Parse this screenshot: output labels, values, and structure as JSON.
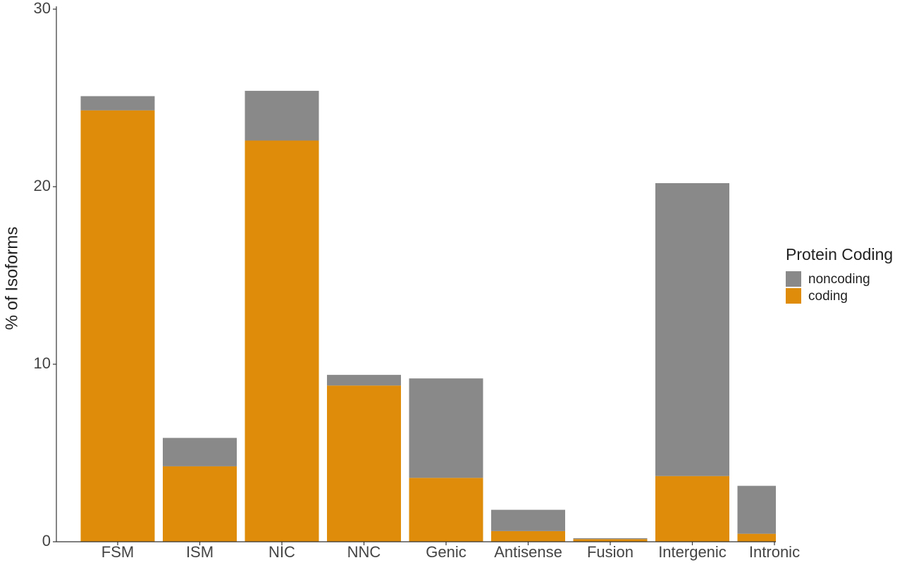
{
  "chart_data": {
    "type": "stacked_bar",
    "y_label": "% of Isoforms",
    "categories": [
      "FSM",
      "ISM",
      "NIC",
      "NNC",
      "Genic",
      "Antisense",
      "Fusion",
      "Intergenic",
      "Intronic"
    ],
    "series": [
      {
        "name": "noncoding",
        "color": "#898989",
        "values": [
          0.8,
          1.6,
          2.8,
          0.6,
          5.6,
          1.2,
          0.05,
          16.5,
          2.7
        ]
      },
      {
        "name": "coding",
        "color": "#de8c0a",
        "values": [
          24.3,
          4.25,
          22.6,
          8.8,
          3.6,
          0.6,
          0.15,
          3.7,
          0.45
        ]
      }
    ],
    "legend_title": "Protein Coding",
    "ylim": [
      0,
      30
    ],
    "yticks": [
      0,
      10,
      20,
      30
    ],
    "grid": false
  }
}
